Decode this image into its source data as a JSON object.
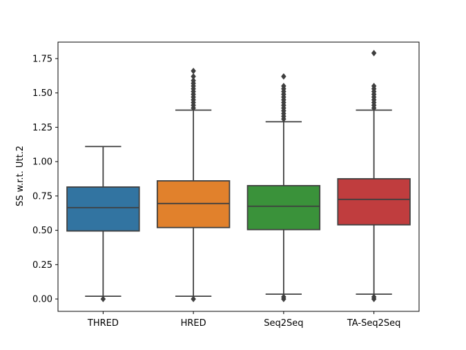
{
  "chart_data": {
    "type": "box",
    "title": "",
    "xlabel": "",
    "ylabel": "SS w.r.t. Utt.2",
    "ylim": [
      -0.09,
      1.87
    ],
    "yticks": [
      0.0,
      0.25,
      0.5,
      0.75,
      1.0,
      1.25,
      1.5,
      1.75
    ],
    "ytick_labels": [
      "0.00",
      "0.25",
      "0.50",
      "0.75",
      "1.00",
      "1.25",
      "1.50",
      "1.75"
    ],
    "grid": false,
    "categories": [
      "THRED",
      "HRED",
      "Seq2Seq",
      "TA-Seq2Seq"
    ],
    "boxes": [
      {
        "category": "THRED",
        "color": "#3274a1",
        "whisker_low": 0.02,
        "q1": 0.495,
        "median": 0.665,
        "q3": 0.815,
        "whisker_high": 1.11,
        "outliers": [
          0.0
        ]
      },
      {
        "category": "HRED",
        "color": "#e1812c",
        "whisker_low": 0.02,
        "q1": 0.52,
        "median": 0.695,
        "q3": 0.86,
        "whisker_high": 1.375,
        "outliers": [
          0.0,
          1.39,
          1.41,
          1.43,
          1.45,
          1.47,
          1.49,
          1.51,
          1.53,
          1.55,
          1.57,
          1.59,
          1.62,
          1.66
        ]
      },
      {
        "category": "Seq2Seq",
        "color": "#3a923a",
        "whisker_low": 0.035,
        "q1": 0.505,
        "median": 0.675,
        "q3": 0.825,
        "whisker_high": 1.29,
        "outliers": [
          0.0,
          0.015,
          1.31,
          1.33,
          1.35,
          1.37,
          1.39,
          1.41,
          1.43,
          1.45,
          1.47,
          1.49,
          1.51,
          1.53,
          1.55,
          1.62
        ]
      },
      {
        "category": "TA-Seq2Seq",
        "color": "#c03d3e",
        "whisker_low": 0.035,
        "q1": 0.54,
        "median": 0.725,
        "q3": 0.875,
        "whisker_high": 1.375,
        "outliers": [
          0.0,
          0.015,
          1.39,
          1.41,
          1.43,
          1.45,
          1.47,
          1.49,
          1.51,
          1.53,
          1.55,
          1.79
        ]
      }
    ]
  }
}
